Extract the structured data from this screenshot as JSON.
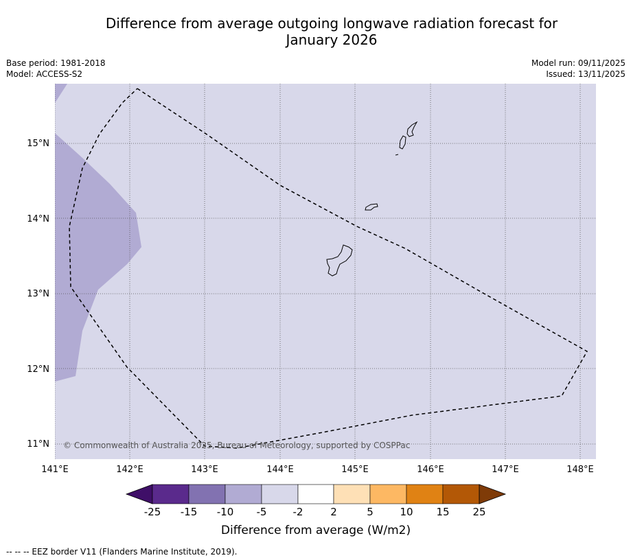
{
  "title_line1": "Difference from average outgoing longwave radiation forecast for",
  "title_line2": "January 2026",
  "meta": {
    "base_period": "Base period: 1981-2018",
    "model": "Model: ACCESS-S2",
    "model_run": "Model run: 09/11/2025",
    "issued": "Issued: 13/11/2025"
  },
  "map": {
    "copyright": "© Commonwealth of Australia 2025, Bureau of Meteorology, supported by COSPPac",
    "lat_labels": [
      "15°N",
      "14°N",
      "13°N",
      "12°N",
      "11°N"
    ],
    "lon_labels": [
      "141°E",
      "142°E",
      "143°E",
      "144°E",
      "145°E",
      "146°E",
      "147°E",
      "148°E"
    ],
    "colors": {
      "background_anomaly": "#d8d8ea",
      "stronger_anomaly": "#b1abd3",
      "grid": "#555555",
      "eez": "#000000",
      "coast": "#000000"
    }
  },
  "colorbar": {
    "title": "Difference from average (W/m2)",
    "labels": [
      "-25",
      "-15",
      "-10",
      "-5",
      "-2",
      "2",
      "5",
      "10",
      "15",
      "25"
    ],
    "colors": [
      "#3f0f68",
      "#5a2a8c",
      "#8272b1",
      "#b1abd3",
      "#d8d8ea",
      "#ffffff",
      "#fee0b6",
      "#fdb863",
      "#e08214",
      "#b35806",
      "#7f3b08"
    ]
  },
  "footnote": "--  --  -- EEZ border V11 (Flanders Marine Institute, 2019)."
}
